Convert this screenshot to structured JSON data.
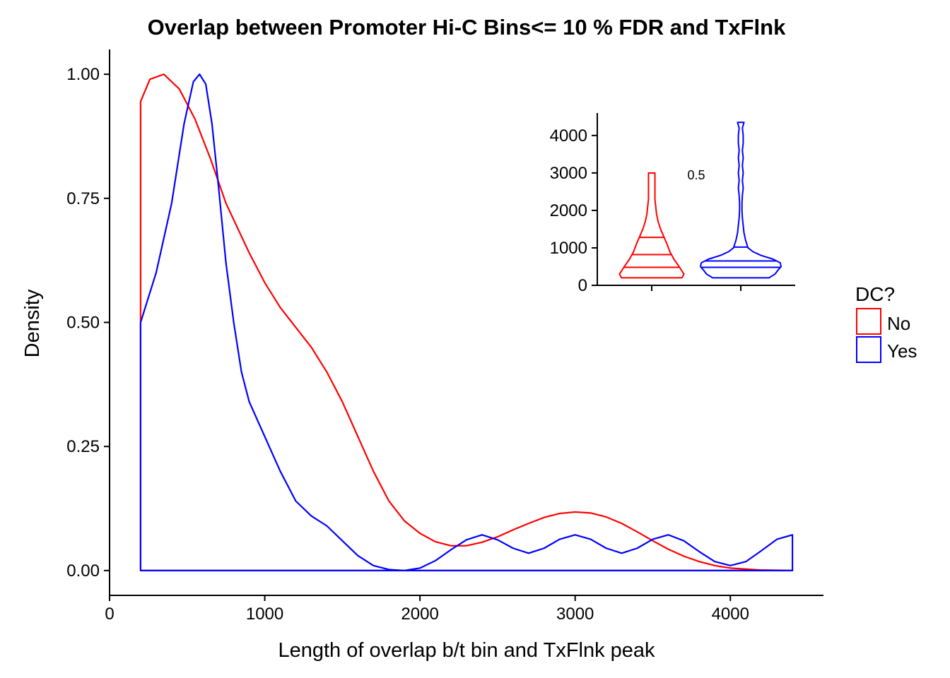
{
  "chart_data": [
    {
      "type": "line",
      "subtype": "density",
      "title": "Overlap between Promoter Hi-C Bins<= 10 % FDR and TxFlnk",
      "xlabel": "Length of overlap b/t bin and TxFlnk peak",
      "ylabel": "Density",
      "xlim": [
        0,
        4600
      ],
      "ylim": [
        -0.05,
        1.05
      ],
      "xticks": [
        0,
        1000,
        2000,
        3000,
        4000
      ],
      "xtick_labels": [
        "0",
        "1000",
        "2000",
        "3000",
        "4000"
      ],
      "yticks": [
        0,
        0.25,
        0.5,
        0.75,
        1.0
      ],
      "ytick_labels": [
        "0.00",
        "0.25",
        "0.50",
        "0.75",
        "1.00"
      ],
      "grid": false,
      "legend": {
        "title": "DC?",
        "position": "right",
        "entries": [
          {
            "label": "No",
            "color": "#FF0000"
          },
          {
            "label": "Yes",
            "color": "#0000FF"
          }
        ]
      },
      "series": [
        {
          "name": "No",
          "color": "#FF0000",
          "x": [
            200,
            260,
            350,
            450,
            550,
            650,
            750,
            900,
            1000,
            1100,
            1200,
            1300,
            1400,
            1500,
            1600,
            1700,
            1800,
            1900,
            2000,
            2100,
            2200,
            2300,
            2400,
            2500,
            2600,
            2700,
            2800,
            2900,
            3000,
            3100,
            3200,
            3300,
            3400,
            3500,
            3600,
            3700,
            3800,
            3900,
            4000,
            4200,
            4400
          ],
          "y": [
            0.945,
            0.99,
            1.0,
            0.97,
            0.91,
            0.83,
            0.74,
            0.64,
            0.58,
            0.53,
            0.49,
            0.45,
            0.4,
            0.34,
            0.27,
            0.2,
            0.14,
            0.1,
            0.075,
            0.058,
            0.05,
            0.05,
            0.057,
            0.068,
            0.082,
            0.095,
            0.107,
            0.115,
            0.118,
            0.116,
            0.108,
            0.095,
            0.078,
            0.06,
            0.043,
            0.029,
            0.018,
            0.01,
            0.005,
            0.001,
            0.0
          ]
        },
        {
          "name": "Yes",
          "color": "#0000FF",
          "x": [
            200,
            300,
            400,
            480,
            540,
            580,
            620,
            660,
            700,
            750,
            800,
            850,
            900,
            1000,
            1100,
            1200,
            1300,
            1400,
            1500,
            1600,
            1700,
            1800,
            1900,
            2000,
            2100,
            2200,
            2300,
            2400,
            2500,
            2600,
            2700,
            2800,
            2900,
            3000,
            3100,
            3200,
            3300,
            3400,
            3500,
            3600,
            3700,
            3800,
            3900,
            4000,
            4100,
            4200,
            4300,
            4400
          ],
          "y": [
            0.5,
            0.6,
            0.74,
            0.9,
            0.985,
            1.0,
            0.98,
            0.9,
            0.78,
            0.62,
            0.5,
            0.4,
            0.34,
            0.27,
            0.2,
            0.14,
            0.11,
            0.09,
            0.06,
            0.03,
            0.01,
            0.002,
            0.0,
            0.005,
            0.02,
            0.042,
            0.062,
            0.072,
            0.062,
            0.045,
            0.035,
            0.045,
            0.063,
            0.072,
            0.063,
            0.045,
            0.035,
            0.045,
            0.063,
            0.072,
            0.06,
            0.038,
            0.018,
            0.01,
            0.018,
            0.04,
            0.063,
            0.072
          ]
        }
      ]
    },
    {
      "type": "violin",
      "inset": true,
      "ylim": [
        0,
        4600
      ],
      "yticks": [
        0,
        1000,
        2000,
        3000,
        4000
      ],
      "ytick_labels": [
        "0",
        "1000",
        "2000",
        "3000",
        "4000"
      ],
      "annotation": "0.5",
      "groups": [
        {
          "name": "No",
          "color": "#FF0000",
          "quantiles": [
            480,
            820,
            1280
          ],
          "profile_y": [
            200,
            300,
            500,
            700,
            900,
            1100,
            1300,
            1500,
            1700,
            1900,
            2100,
            2300,
            2500,
            2700,
            2900,
            3000
          ],
          "profile_w": [
            0.75,
            0.8,
            0.68,
            0.55,
            0.45,
            0.38,
            0.3,
            0.22,
            0.16,
            0.12,
            0.1,
            0.08,
            0.08,
            0.08,
            0.08,
            0.08
          ]
        },
        {
          "name": "Yes",
          "color": "#0000FF",
          "quantiles": [
            480,
            650,
            1020
          ],
          "profile_y": [
            200,
            300,
            400,
            500,
            600,
            700,
            800,
            900,
            1000,
            1200,
            1400,
            1600,
            1800,
            2000,
            2200,
            2400,
            2600,
            2800,
            3000,
            3200,
            3400,
            3600,
            3800,
            4000,
            4200,
            4350
          ],
          "profile_w": [
            0.7,
            0.85,
            0.92,
            1.0,
            0.98,
            0.8,
            0.5,
            0.3,
            0.18,
            0.12,
            0.08,
            0.06,
            0.04,
            0.03,
            0.03,
            0.04,
            0.06,
            0.04,
            0.06,
            0.04,
            0.06,
            0.04,
            0.06,
            0.06,
            0.04,
            0.08
          ]
        }
      ]
    }
  ]
}
